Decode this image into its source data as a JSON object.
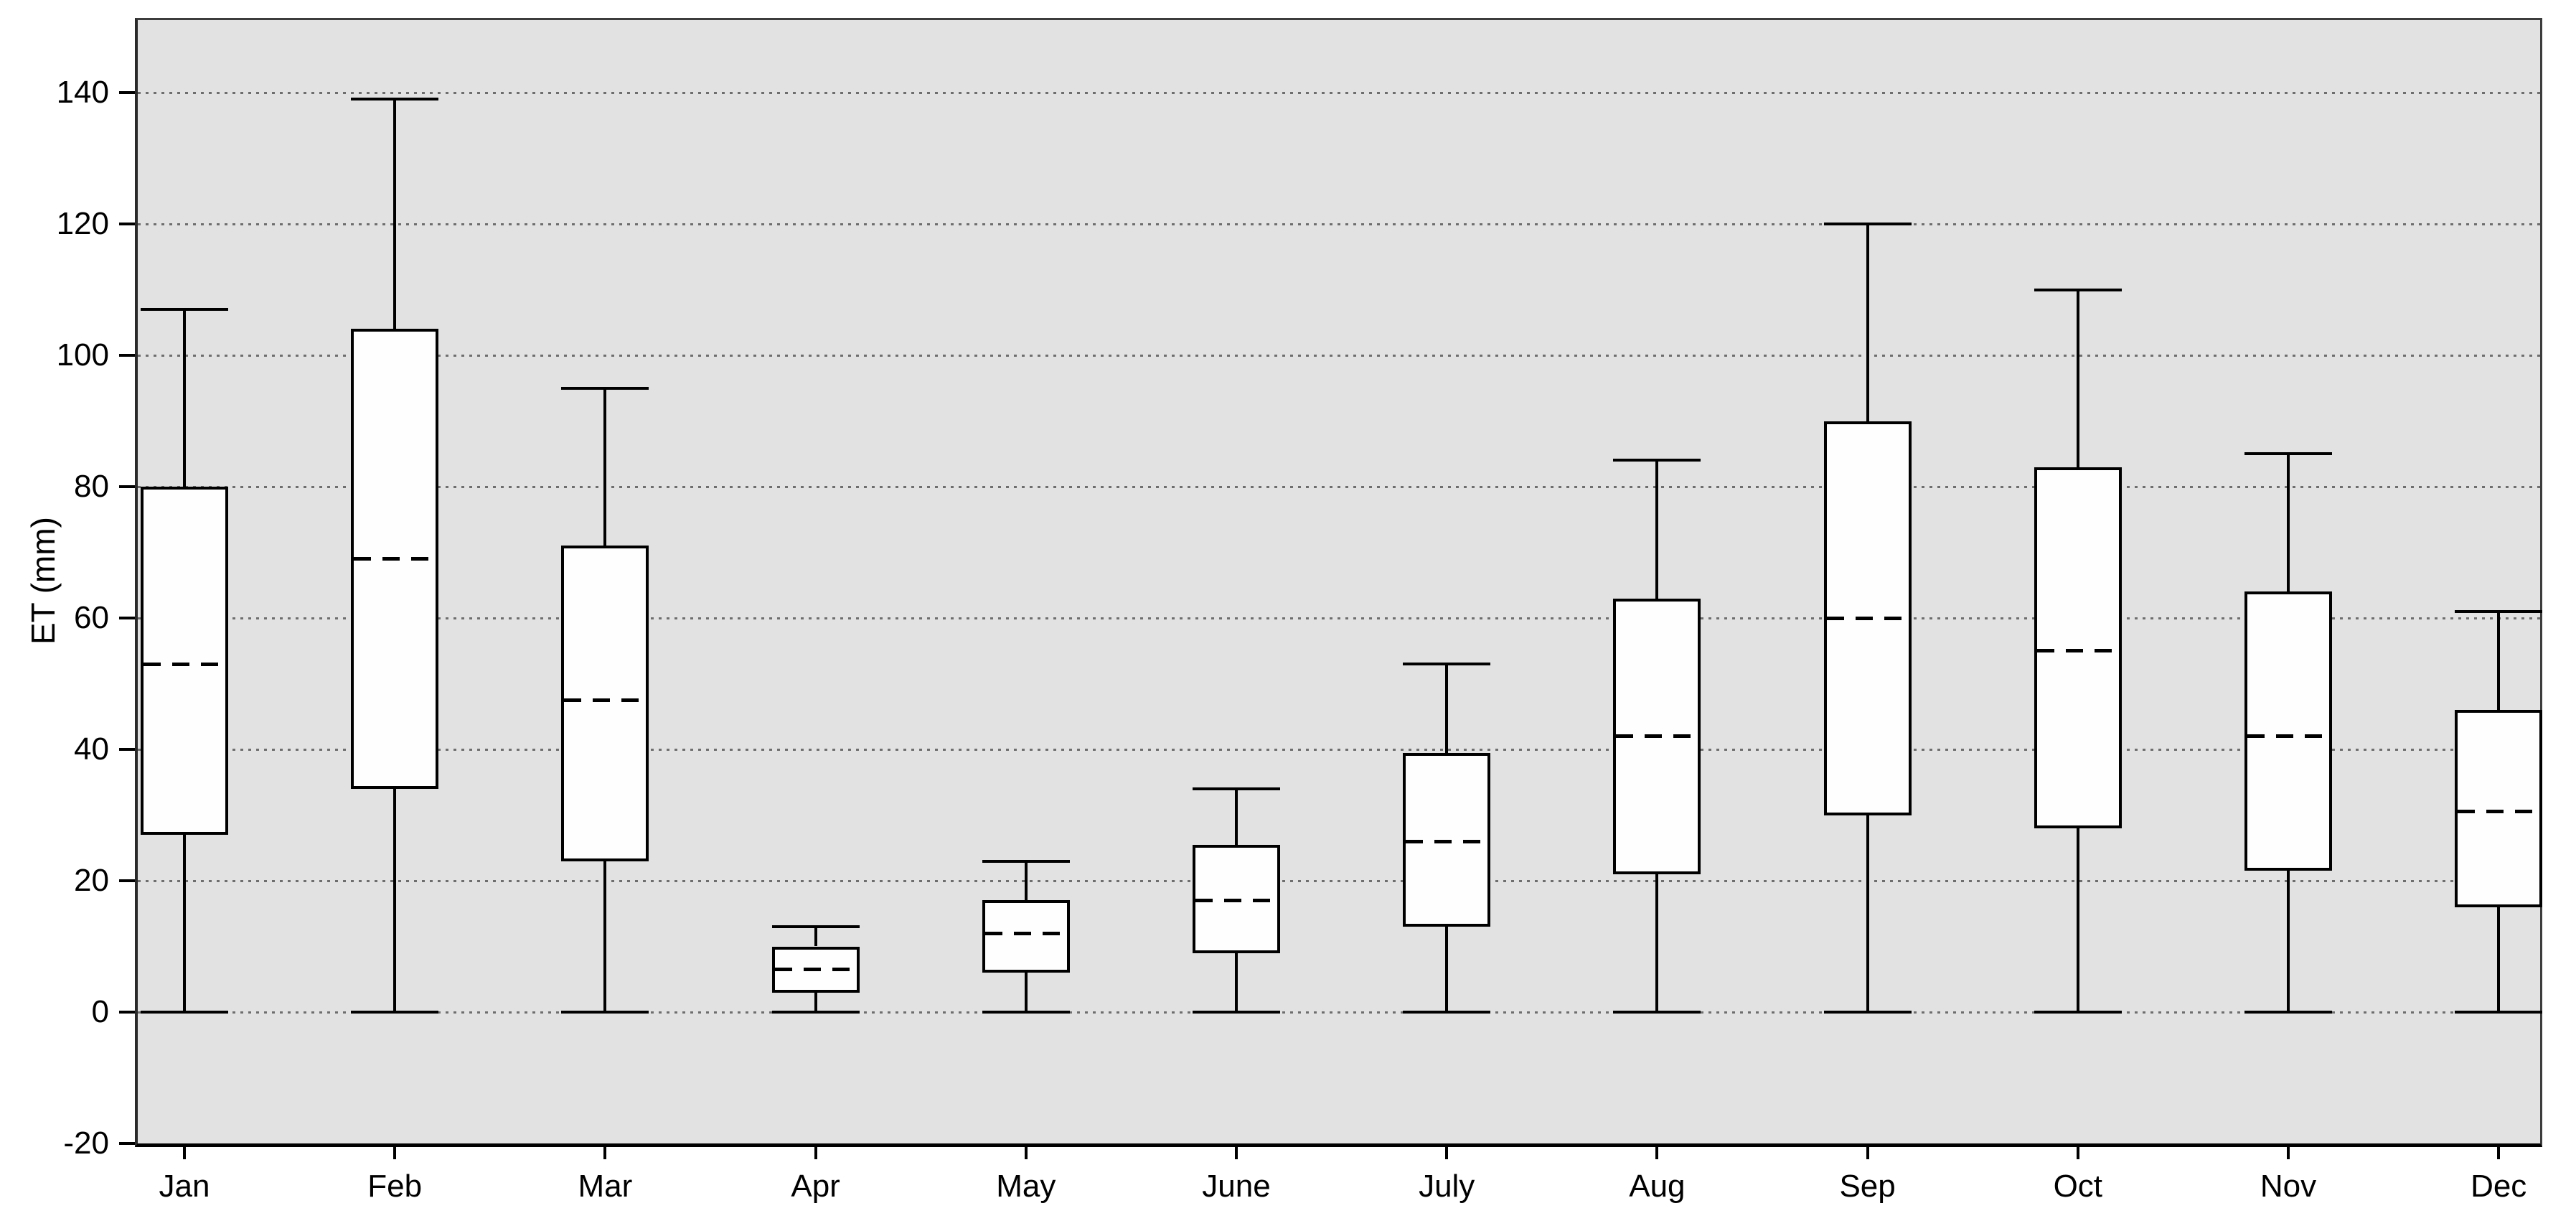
{
  "chart": {
    "y_axis_title": "ET (mm)",
    "colors": {
      "plot_background": "#e2e2e2",
      "box_fill": "#fefefe",
      "line_color": "#000000",
      "gridline_color": "#6e6e6e",
      "frame_color": "#3c3c3c",
      "page_background": "#ffffff"
    }
  },
  "chart_data": {
    "type": "box",
    "title": "",
    "xlabel": "",
    "ylabel": "ET (mm)",
    "ylim": [
      -20,
      151
    ],
    "grid": "horizontal-dotted",
    "legend": "none",
    "y_ticks": [
      -20,
      0,
      20,
      40,
      60,
      80,
      100,
      120,
      140
    ],
    "categories": [
      "Jan",
      "Feb",
      "Mar",
      "Apr",
      "May",
      "June",
      "July",
      "Aug",
      "Sep",
      "Oct",
      "Nov",
      "Dec"
    ],
    "median_style": "dashed",
    "series": [
      {
        "month": "Jan",
        "low": 0,
        "q1": 27,
        "median": 53,
        "q3": 80,
        "high": 107
      },
      {
        "month": "Feb",
        "low": 0,
        "q1": 34,
        "median": 69,
        "q3": 104,
        "high": 139
      },
      {
        "month": "Mar",
        "low": 0,
        "q1": 23,
        "median": 47.5,
        "q3": 71,
        "high": 95
      },
      {
        "month": "Apr",
        "low": 0,
        "q1": 3,
        "median": 6.5,
        "q3": 10,
        "high": 13
      },
      {
        "month": "May",
        "low": 0,
        "q1": 6,
        "median": 12,
        "q3": 17,
        "high": 23
      },
      {
        "month": "June",
        "low": 0,
        "q1": 9,
        "median": 17,
        "q3": 25.5,
        "high": 34
      },
      {
        "month": "July",
        "low": 0,
        "q1": 13,
        "median": 26,
        "q3": 39.5,
        "high": 53
      },
      {
        "month": "Aug",
        "low": 0,
        "q1": 21,
        "median": 42,
        "q3": 63,
        "high": 84
      },
      {
        "month": "Sep",
        "low": 0,
        "q1": 30,
        "median": 60,
        "q3": 90,
        "high": 120
      },
      {
        "month": "Oct",
        "low": 0,
        "q1": 28,
        "median": 55,
        "q3": 83,
        "high": 110
      },
      {
        "month": "Nov",
        "low": 0,
        "q1": 21.5,
        "median": 42,
        "q3": 64,
        "high": 85
      },
      {
        "month": "Dec",
        "low": 0,
        "q1": 16,
        "median": 30.5,
        "q3": 46,
        "high": 61
      }
    ]
  }
}
